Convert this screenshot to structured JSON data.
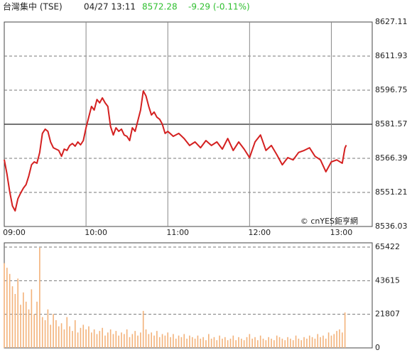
{
  "header": {
    "name": "台灣集中 (TSE)",
    "time": "04/27 13:11",
    "price": 8572.28,
    "change": "-9.29 (-0.11%)"
  },
  "chart_data": [
    {
      "type": "line",
      "annotation": "© cnYES鉅亨網",
      "color": "#d42020",
      "grid": true,
      "prev_close": 8581.57,
      "xlim": [
        0,
        270
      ],
      "xticks": [
        {
          "value": 0,
          "label": "09:00"
        },
        {
          "value": 60,
          "label": "10:00"
        },
        {
          "value": 120,
          "label": "11:00"
        },
        {
          "value": 180,
          "label": "12:00"
        },
        {
          "value": 240,
          "label": "13:00"
        }
      ],
      "ylim": [
        8536.03,
        8627.11
      ],
      "yticks": [
        8536.03,
        8551.21,
        8566.39,
        8581.57,
        8596.75,
        8611.93,
        8627.11
      ],
      "x": [
        0,
        2,
        4,
        6,
        8,
        10,
        12,
        14,
        16,
        18,
        20,
        22,
        24,
        26,
        28,
        30,
        32,
        34,
        36,
        38,
        40,
        42,
        44,
        46,
        48,
        50,
        52,
        54,
        56,
        58,
        60,
        62,
        64,
        66,
        68,
        70,
        72,
        74,
        76,
        78,
        80,
        82,
        84,
        86,
        88,
        90,
        92,
        94,
        96,
        98,
        100,
        102,
        104,
        106,
        108,
        110,
        112,
        114,
        116,
        118,
        120,
        124,
        128,
        132,
        136,
        140,
        144,
        148,
        152,
        156,
        160,
        164,
        168,
        172,
        176,
        180,
        184,
        188,
        192,
        196,
        200,
        204,
        208,
        212,
        216,
        220,
        224,
        228,
        232,
        236,
        240,
        244,
        248,
        250,
        251
      ],
      "values": [
        8565.8,
        8559.4,
        8551.5,
        8545.2,
        8543.0,
        8548.4,
        8550.9,
        8553.1,
        8554.7,
        8558.5,
        8563.5,
        8564.8,
        8564.2,
        8569.0,
        8577.5,
        8579.4,
        8578.4,
        8573.7,
        8571.1,
        8570.5,
        8569.9,
        8567.3,
        8570.5,
        8569.9,
        8572.1,
        8573.0,
        8571.8,
        8573.7,
        8572.4,
        8574.3,
        8580.0,
        8584.7,
        8589.5,
        8587.9,
        8592.6,
        8591.1,
        8593.3,
        8591.1,
        8589.5,
        8580.6,
        8576.8,
        8580.0,
        8578.4,
        8579.4,
        8576.8,
        8576.2,
        8574.3,
        8580.0,
        8578.4,
        8583.1,
        8587.9,
        8596.4,
        8594.2,
        8589.5,
        8585.7,
        8587.0,
        8584.7,
        8583.8,
        8581.6,
        8577.5,
        8578.4,
        8576.2,
        8577.5,
        8575.2,
        8572.1,
        8573.7,
        8571.1,
        8574.3,
        8572.1,
        8573.7,
        8570.5,
        8575.2,
        8569.9,
        8573.7,
        8570.5,
        8566.7,
        8573.7,
        8576.8,
        8569.9,
        8572.1,
        8568.0,
        8563.5,
        8566.7,
        8565.7,
        8569.0,
        8569.9,
        8571.1,
        8567.3,
        8565.7,
        8560.4,
        8564.8,
        8565.7,
        8564.2,
        8571.0,
        8572.28
      ]
    },
    {
      "type": "bar",
      "color": "#f3b27a",
      "grid": true,
      "xlim": [
        0,
        270
      ],
      "ylim": [
        0,
        65422
      ],
      "yticks": [
        0,
        21807,
        43615,
        65422
      ],
      "x": [
        0,
        2,
        4,
        6,
        8,
        10,
        12,
        14,
        16,
        18,
        20,
        22,
        24,
        26,
        28,
        30,
        32,
        34,
        36,
        38,
        40,
        42,
        44,
        46,
        48,
        50,
        52,
        54,
        56,
        58,
        60,
        62,
        64,
        66,
        68,
        70,
        72,
        74,
        76,
        78,
        80,
        82,
        84,
        86,
        88,
        90,
        92,
        94,
        96,
        98,
        100,
        102,
        104,
        106,
        108,
        110,
        112,
        114,
        116,
        118,
        120,
        122,
        124,
        126,
        128,
        130,
        132,
        134,
        136,
        138,
        140,
        142,
        144,
        146,
        148,
        150,
        152,
        154,
        156,
        158,
        160,
        162,
        164,
        166,
        168,
        170,
        172,
        174,
        176,
        178,
        180,
        182,
        184,
        186,
        188,
        190,
        192,
        194,
        196,
        198,
        200,
        202,
        204,
        206,
        208,
        210,
        212,
        214,
        216,
        218,
        220,
        222,
        224,
        226,
        228,
        230,
        232,
        234,
        236,
        238,
        240,
        242,
        244,
        246,
        248,
        250
      ],
      "values": [
        55000,
        52000,
        48000,
        40000,
        35000,
        45000,
        28000,
        36000,
        30000,
        25000,
        38000,
        22000,
        30000,
        65000,
        20000,
        18000,
        25000,
        15000,
        22000,
        18000,
        14000,
        16000,
        12000,
        20000,
        14000,
        11000,
        18000,
        10000,
        13000,
        15000,
        12000,
        14000,
        10000,
        12000,
        9000,
        11000,
        13000,
        8000,
        10000,
        12000,
        9000,
        11000,
        8000,
        10000,
        9000,
        12000,
        7000,
        9000,
        11000,
        8000,
        10000,
        24000,
        12000,
        9000,
        10000,
        8000,
        11000,
        7000,
        9000,
        8000,
        10000,
        7000,
        9000,
        6000,
        8000,
        7000,
        9000,
        6000,
        8000,
        7000,
        6000,
        8000,
        6000,
        7000,
        5000,
        9000,
        6000,
        7000,
        5000,
        8000,
        6000,
        7000,
        5000,
        6000,
        8000,
        5000,
        7000,
        6000,
        5000,
        7000,
        9000,
        6000,
        7000,
        5000,
        8000,
        6000,
        5000,
        7000,
        6000,
        5000,
        8000,
        7000,
        6000,
        5000,
        7000,
        6000,
        5000,
        8000,
        6000,
        5000,
        7000,
        6000,
        8000,
        7000,
        6000,
        9000,
        7000,
        8000,
        6000,
        10000,
        8000,
        9000,
        11000,
        12000,
        10000,
        23000
      ]
    }
  ]
}
